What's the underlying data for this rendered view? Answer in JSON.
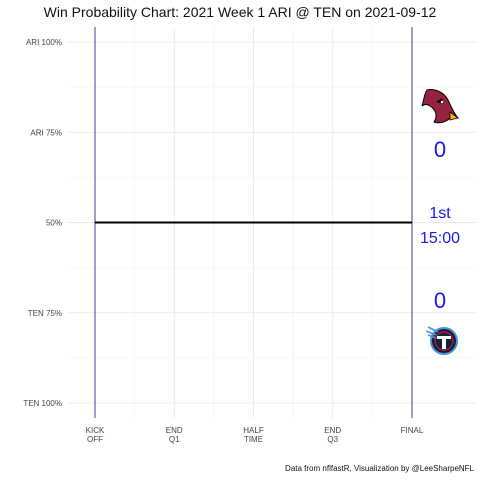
{
  "chart_data": {
    "type": "line",
    "title": "Win Probability Chart: 2021 Week 1 ARI @ TEN on 2021-09-12",
    "caption": "Data from nflfastR, Visualization by @LeeSharpeNFL",
    "xlabel": "",
    "ylabel": "",
    "x_ticks": [
      {
        "value": 0,
        "label": [
          "KICK",
          "OFF"
        ]
      },
      {
        "value": 15,
        "label": [
          "END",
          "Q1"
        ]
      },
      {
        "value": 30,
        "label": [
          "HALF",
          "TIME"
        ]
      },
      {
        "value": 45,
        "label": [
          "END",
          "Q3"
        ]
      },
      {
        "value": 60,
        "label": [
          "FINAL"
        ]
      }
    ],
    "xlim": [
      0,
      60
    ],
    "y_ticks": [
      {
        "value": 1.0,
        "label": "ARI 100%"
      },
      {
        "value": 0.75,
        "label": "ARI 75%"
      },
      {
        "value": 0.5,
        "label": "50%"
      },
      {
        "value": 0.25,
        "label": "TEN 75%"
      },
      {
        "value": 0.0,
        "label": "TEN 100%"
      }
    ],
    "ylim": [
      0,
      1
    ],
    "grid": true,
    "series": [
      {
        "x": [
          0,
          60
        ],
        "y": [
          0.5,
          0.5
        ],
        "color": "#000000"
      }
    ],
    "vlines": [
      0,
      60
    ],
    "vline_color": "#3a3f8f",
    "away_team": {
      "abbr": "ARI",
      "score": "0",
      "logo": "cardinals-logo",
      "color": "#97233F"
    },
    "home_team": {
      "abbr": "TEN",
      "score": "0",
      "logo": "titans-logo",
      "color": "#0C2340"
    },
    "quarter_label": "1st",
    "clock_label": "15:00",
    "accent_color": "#1a1ae6"
  }
}
